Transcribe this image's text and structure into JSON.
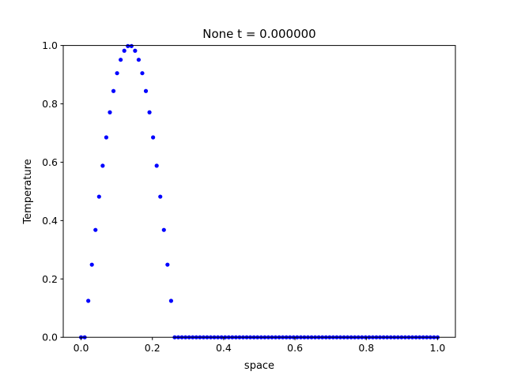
{
  "chart_data": {
    "type": "scatter",
    "title": "None t = 0.000000",
    "xlabel": "space",
    "ylabel": "Temperature",
    "xlim": [
      -0.05,
      1.05
    ],
    "ylim": [
      0.0,
      1.0
    ],
    "xticks": [
      0.0,
      0.2,
      0.4,
      0.6,
      0.8,
      1.0
    ],
    "xtick_labels": [
      "0.0",
      "0.2",
      "0.4",
      "0.6",
      "0.8",
      "1.0"
    ],
    "yticks": [
      0.0,
      0.2,
      0.4,
      0.6,
      0.8,
      1.0
    ],
    "ytick_labels": [
      "0.0",
      "0.2",
      "0.4",
      "0.6",
      "0.8",
      "1.0"
    ],
    "grid": false,
    "marker_color": "#0000ff",
    "series": [
      {
        "x": [
          0.0,
          0.0101,
          0.0202,
          0.0303,
          0.0404,
          0.0505,
          0.0606,
          0.0707,
          0.0808,
          0.0909,
          0.101,
          0.1111,
          0.1212,
          0.1313,
          0.1414,
          0.1515,
          0.1616,
          0.1717,
          0.1818,
          0.1919,
          0.202,
          0.2121,
          0.2222,
          0.2323,
          0.2424,
          0.2525,
          0.2626,
          0.2727,
          0.2828,
          0.2929,
          0.303,
          0.3131,
          0.3232,
          0.3333,
          0.3434,
          0.3535,
          0.3636,
          0.3737,
          0.3838,
          0.3939,
          0.404,
          0.4141,
          0.4242,
          0.4343,
          0.4444,
          0.4545,
          0.4646,
          0.4747,
          0.4848,
          0.4949,
          0.5051,
          0.5152,
          0.5253,
          0.5354,
          0.5455,
          0.5556,
          0.5657,
          0.5758,
          0.5859,
          0.596,
          0.6061,
          0.6162,
          0.6263,
          0.6364,
          0.6465,
          0.6566,
          0.6667,
          0.6768,
          0.6869,
          0.697,
          0.7071,
          0.7172,
          0.7273,
          0.7374,
          0.7475,
          0.7576,
          0.7677,
          0.7778,
          0.7879,
          0.798,
          0.8081,
          0.8182,
          0.8283,
          0.8384,
          0.8485,
          0.8586,
          0.8687,
          0.8788,
          0.8889,
          0.899,
          0.9091,
          0.9192,
          0.9293,
          0.9394,
          0.9495,
          0.9596,
          0.9697,
          0.9798,
          0.9899,
          1.0
        ],
        "y": [
          0.0,
          0.0,
          0.125,
          0.249,
          0.368,
          0.482,
          0.588,
          0.685,
          0.771,
          0.844,
          0.905,
          0.951,
          0.982,
          0.998,
          0.998,
          0.982,
          0.951,
          0.905,
          0.844,
          0.771,
          0.685,
          0.588,
          0.482,
          0.368,
          0.249,
          0.125,
          0.0,
          0.0,
          0.0,
          0.0,
          0.0,
          0.0,
          0.0,
          0.0,
          0.0,
          0.0,
          0.0,
          0.0,
          0.0,
          0.0,
          0.0,
          0.0,
          0.0,
          0.0,
          0.0,
          0.0,
          0.0,
          0.0,
          0.0,
          0.0,
          0.0,
          0.0,
          0.0,
          0.0,
          0.0,
          0.0,
          0.0,
          0.0,
          0.0,
          0.0,
          0.0,
          0.0,
          0.0,
          0.0,
          0.0,
          0.0,
          0.0,
          0.0,
          0.0,
          0.0,
          0.0,
          0.0,
          0.0,
          0.0,
          0.0,
          0.0,
          0.0,
          0.0,
          0.0,
          0.0,
          0.0,
          0.0,
          0.0,
          0.0,
          0.0,
          0.0,
          0.0,
          0.0,
          0.0,
          0.0,
          0.0,
          0.0,
          0.0,
          0.0,
          0.0,
          0.0,
          0.0,
          0.0,
          0.0,
          0.0
        ]
      }
    ]
  }
}
